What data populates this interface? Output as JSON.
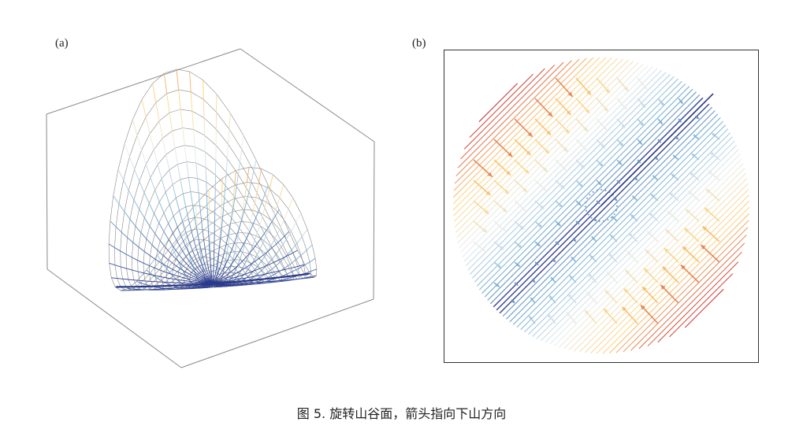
{
  "panels": {
    "a_label": "(a)",
    "b_label": "(b)"
  },
  "caption": "图 5. 旋转山谷面，箭头指向下山方向",
  "colors": {
    "low": "#2b3a8c",
    "mid_low": "#74add1",
    "mid": "#e8eef0",
    "mid_high": "#fdd27a",
    "high": "#c8252a",
    "box_line": "#888888",
    "frame": "#333333"
  }
}
